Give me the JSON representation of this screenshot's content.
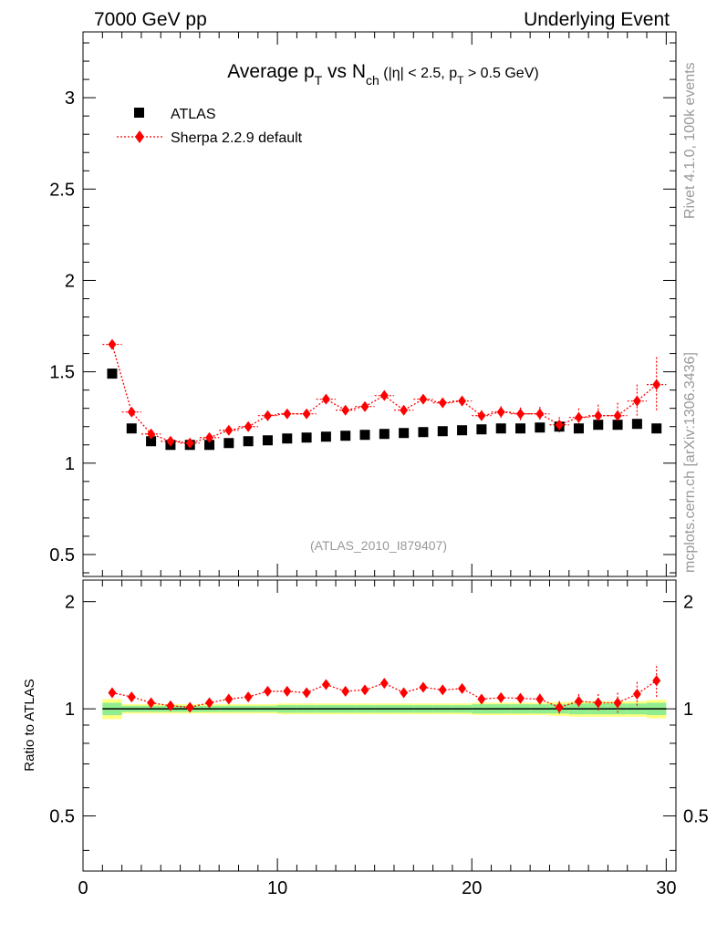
{
  "header": {
    "left": "7000 GeV pp",
    "right": "Underlying Event"
  },
  "title": {
    "part1": "Average p",
    "sub1": "T",
    "part2": " vs N",
    "sub2": "ch",
    "part3": " (|η| < 2.5, p",
    "sub3": "T",
    "part4": " > 0.5 GeV)"
  },
  "side_text": {
    "rivet": "Rivet 4.1.0,  100k events",
    "mcplots": "mcplots.cern.ch [arXiv:1306.3436]"
  },
  "analysis_label": "(ATLAS_2010_I879407)",
  "legend": {
    "data_label": "ATLAS",
    "mc_label": "Sherpa 2.2.9 default"
  },
  "colors": {
    "data": "#000000",
    "mc": "#ff0000",
    "band_inner": "#90ee90",
    "band_outer": "#ffff80",
    "label_grey": "#999999"
  },
  "chart_data": {
    "type": "scatter",
    "xlim": [
      0,
      30.5
    ],
    "main_ylim": [
      0.38,
      3.36
    ],
    "ratio_ylim": [
      0.35,
      2.3
    ],
    "main_yticks": [
      "0.5",
      "1",
      "1.5",
      "2",
      "2.5",
      "3"
    ],
    "main_ytick_values": [
      0.5,
      1,
      1.5,
      2,
      2.5,
      3
    ],
    "ratio_yticks": [
      "0.5",
      "1",
      "2"
    ],
    "ratio_ytick_values": [
      0.5,
      1,
      2
    ],
    "xticks": [
      "0",
      "10",
      "20",
      "30"
    ],
    "xtick_values": [
      0,
      10,
      20,
      30
    ],
    "ratio_ylabel": "Ratio to ATLAS",
    "x": [
      1.5,
      2.5,
      3.5,
      4.5,
      5.5,
      6.5,
      7.5,
      8.5,
      9.5,
      10.5,
      11.5,
      12.5,
      13.5,
      14.5,
      15.5,
      16.5,
      17.5,
      18.5,
      19.5,
      20.5,
      21.5,
      22.5,
      23.5,
      24.5,
      25.5,
      26.5,
      27.5,
      28.5,
      29.5
    ],
    "series": [
      {
        "name": "ATLAS",
        "values": [
          1.49,
          1.19,
          1.12,
          1.1,
          1.1,
          1.1,
          1.11,
          1.12,
          1.125,
          1.135,
          1.14,
          1.145,
          1.15,
          1.155,
          1.16,
          1.165,
          1.17,
          1.175,
          1.18,
          1.185,
          1.19,
          1.19,
          1.195,
          1.2,
          1.19,
          1.21,
          1.21,
          1.215,
          1.19
        ]
      },
      {
        "name": "Sherpa 2.2.9 default",
        "values": [
          1.65,
          1.28,
          1.16,
          1.12,
          1.11,
          1.14,
          1.18,
          1.2,
          1.26,
          1.27,
          1.27,
          1.35,
          1.29,
          1.31,
          1.37,
          1.29,
          1.35,
          1.33,
          1.34,
          1.26,
          1.28,
          1.27,
          1.27,
          1.21,
          1.25,
          1.26,
          1.26,
          1.34,
          1.43
        ],
        "errors": [
          0.01,
          0.01,
          0.01,
          0.01,
          0.01,
          0.01,
          0.01,
          0.01,
          0.01,
          0.012,
          0.013,
          0.015,
          0.016,
          0.018,
          0.02,
          0.022,
          0.024,
          0.026,
          0.028,
          0.03,
          0.032,
          0.035,
          0.038,
          0.042,
          0.05,
          0.06,
          0.07,
          0.09,
          0.15
        ]
      }
    ],
    "ratio": [
      1.11,
      1.08,
      1.04,
      1.02,
      1.01,
      1.04,
      1.065,
      1.08,
      1.12,
      1.12,
      1.11,
      1.17,
      1.12,
      1.13,
      1.18,
      1.11,
      1.15,
      1.13,
      1.14,
      1.065,
      1.075,
      1.07,
      1.065,
      1.01,
      1.05,
      1.04,
      1.04,
      1.1,
      1.2
    ],
    "ratio_errors": [
      0.01,
      0.01,
      0.01,
      0.01,
      0.01,
      0.01,
      0.01,
      0.01,
      0.01,
      0.012,
      0.013,
      0.015,
      0.016,
      0.018,
      0.02,
      0.022,
      0.024,
      0.026,
      0.028,
      0.03,
      0.032,
      0.035,
      0.038,
      0.042,
      0.05,
      0.06,
      0.07,
      0.09,
      0.12
    ],
    "band_inner": [
      0.04,
      0.02,
      0.02,
      0.02,
      0.02,
      0.02,
      0.02,
      0.02,
      0.02,
      0.025,
      0.025,
      0.025,
      0.025,
      0.025,
      0.025,
      0.025,
      0.025,
      0.025,
      0.025,
      0.03,
      0.03,
      0.03,
      0.03,
      0.03,
      0.035,
      0.035,
      0.035,
      0.035,
      0.04
    ],
    "band_outer": [
      0.065,
      0.03,
      0.03,
      0.03,
      0.03,
      0.03,
      0.03,
      0.03,
      0.03,
      0.035,
      0.035,
      0.035,
      0.035,
      0.035,
      0.035,
      0.035,
      0.035,
      0.035,
      0.035,
      0.04,
      0.04,
      0.04,
      0.04,
      0.045,
      0.05,
      0.05,
      0.05,
      0.05,
      0.06
    ]
  }
}
